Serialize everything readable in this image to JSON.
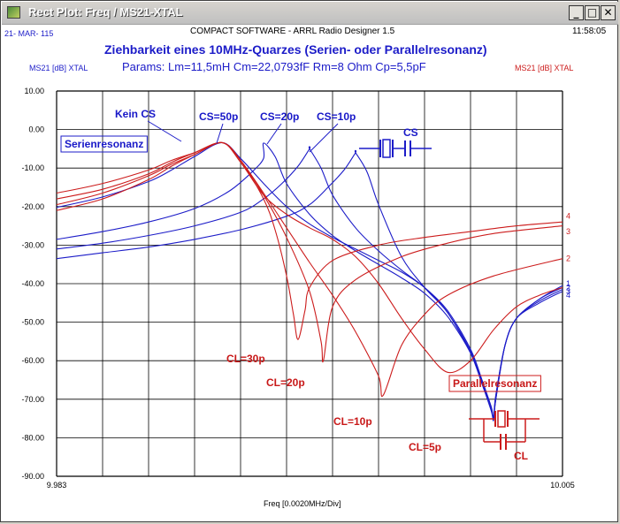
{
  "window": {
    "title": "Rect Plot: Freq / MS21-XTAL",
    "minimize": "_",
    "maximize": "□",
    "close": "✕"
  },
  "header": {
    "date": "21- MAR- 115",
    "software": "COMPACT SOFTWARE - ARRL Radio Designer 1.5",
    "time": "11:58:05"
  },
  "chart_data": {
    "type": "line",
    "title": "Ziehbarkeit eines 10MHz-Quarzes (Serien- oder Parallelresonanz)",
    "subtitle": "Params:  Lm=11,5mH  Cm=22,0793fF   Rm=8 Ohm   Cp=5,5pF",
    "ylabel_left": "MS21 [dB] XTAL",
    "ylabel_right": "MS21 [dB] XTAL",
    "xlabel": "Freq [0.0020MHz/Div]",
    "xlim": [
      9.983,
      10.005
    ],
    "ylim": [
      -90,
      10
    ],
    "x_tick_labels": [
      "9.983",
      "10.005"
    ],
    "y_ticks": [
      "10.00",
      "0.00",
      "-10.00",
      "-20.00",
      "-30.00",
      "-40.00",
      "-50.00",
      "-60.00",
      "-70.00",
      "-80.00",
      "-90.00"
    ],
    "grid": true,
    "colors": {
      "blue": "#1c1cc8",
      "red": "#cc1c1c"
    },
    "series": [
      {
        "color": "blue",
        "x": [
          9.983,
          9.985,
          9.987,
          9.988,
          9.989,
          9.9902,
          9.991,
          9.992,
          9.993,
          9.994,
          9.995,
          9.996,
          9.997,
          9.998,
          9.999,
          10.0,
          10.001,
          10.0015,
          10.0019,
          10.002,
          10.0021,
          10.0025,
          10.003,
          10.004,
          10.005
        ],
        "y": [
          -20.2,
          -17.5,
          -13.5,
          -10.5,
          -7,
          -3.4,
          -7.5,
          -14,
          -20,
          -24.5,
          -28,
          -31,
          -34,
          -37,
          -41,
          -47,
          -57,
          -65,
          -72,
          -75,
          -70,
          -56,
          -49,
          -44,
          -40.5
        ]
      },
      {
        "color": "blue",
        "x": [
          9.983,
          9.985,
          9.987,
          9.989,
          9.9905,
          9.9915,
          9.992,
          9.992,
          9.9925,
          9.993,
          9.994,
          9.995,
          9.996,
          9.997,
          9.998,
          9.999,
          10.0,
          10.001,
          10.0015,
          10.0019,
          10.002,
          10.0021,
          10.0025,
          10.003,
          10.004,
          10.005
        ],
        "y": [
          -28.5,
          -26.5,
          -24,
          -20.5,
          -16,
          -11,
          -7.5,
          -3.5,
          -7,
          -14,
          -22,
          -27.5,
          -31.5,
          -35,
          -38.5,
          -42.5,
          -48.5,
          -58,
          -66,
          -73,
          -75.5,
          -70,
          -56,
          -49,
          -44,
          -41
        ]
      },
      {
        "color": "blue",
        "x": [
          9.983,
          9.985,
          9.987,
          9.989,
          9.991,
          9.992,
          9.9928,
          9.9935,
          9.994,
          9.994,
          9.9945,
          9.995,
          9.996,
          9.997,
          9.998,
          9.999,
          10.0,
          10.001,
          10.0015,
          10.0019,
          10.002,
          10.0021,
          10.0025,
          10.003,
          10.004,
          10.005
        ],
        "y": [
          -31,
          -29.5,
          -27.5,
          -25,
          -21.5,
          -18,
          -14,
          -9.5,
          -5,
          -5,
          -10,
          -17,
          -25.5,
          -31.5,
          -36.5,
          -41,
          -47.5,
          -58,
          -66,
          -72.5,
          -75,
          -69,
          -56,
          -49,
          -44.5,
          -41.5
        ]
      },
      {
        "color": "blue",
        "x": [
          9.983,
          9.985,
          9.987,
          9.989,
          9.991,
          9.993,
          9.994,
          9.9948,
          9.9955,
          9.996,
          9.996,
          9.9965,
          9.997,
          9.998,
          9.999,
          10.0,
          10.001,
          10.0015,
          10.0019,
          10.002,
          10.0021,
          10.0025,
          10.003,
          10.004,
          10.005
        ],
        "y": [
          -33.5,
          -32,
          -30.5,
          -28.5,
          -26,
          -22.5,
          -19.5,
          -15,
          -10.5,
          -6,
          -6,
          -11,
          -19.5,
          -33,
          -41,
          -47.5,
          -57.5,
          -65.5,
          -72,
          -75,
          -69,
          -56,
          -49,
          -45,
          -42
        ]
      },
      {
        "color": "red",
        "x": [
          9.983,
          9.985,
          9.987,
          9.988,
          9.989,
          9.9902,
          9.991,
          9.992,
          9.9925,
          9.993,
          9.9933,
          9.9935,
          9.9938,
          9.994,
          9.995,
          9.997,
          9.999,
          10.001,
          10.003,
          10.005
        ],
        "y": [
          -16.5,
          -14,
          -10.5,
          -8,
          -6,
          -3.4,
          -8,
          -18,
          -26,
          -38,
          -48,
          -54.5,
          -47,
          -41,
          -34,
          -30,
          -28,
          -26.5,
          -25,
          -24
        ]
      },
      {
        "color": "red",
        "x": [
          9.983,
          9.985,
          9.987,
          9.988,
          9.989,
          9.9902,
          9.991,
          9.992,
          9.993,
          9.994,
          9.9945,
          9.9946,
          9.995,
          9.996,
          9.998,
          10.0,
          10.002,
          10.005
        ],
        "y": [
          -18,
          -15.5,
          -11.5,
          -8.5,
          -6,
          -3.4,
          -8,
          -17,
          -28,
          -42,
          -55,
          -60,
          -46,
          -39,
          -33,
          -29.5,
          -27,
          -25
        ]
      },
      {
        "color": "red",
        "x": [
          9.983,
          9.985,
          9.987,
          9.988,
          9.989,
          9.9902,
          9.991,
          9.992,
          9.993,
          9.994,
          9.995,
          9.996,
          9.997,
          9.9972,
          9.998,
          9.999,
          10.0,
          10.002,
          10.005
        ],
        "y": [
          -19.5,
          -16.5,
          -12,
          -9,
          -6.5,
          -3.4,
          -8,
          -16.5,
          -25.5,
          -34.5,
          -43,
          -52.5,
          -64,
          -69,
          -56,
          -48,
          -43,
          -38,
          -33.5
        ]
      },
      {
        "color": "red",
        "x": [
          9.983,
          9.985,
          9.987,
          9.988,
          9.989,
          9.9902,
          9.991,
          9.992,
          9.993,
          9.994,
          9.995,
          9.996,
          9.997,
          9.998,
          9.999,
          10.0,
          10.001,
          10.002,
          10.003,
          10.004,
          10.005
        ],
        "y": [
          -21,
          -18,
          -13,
          -9.5,
          -6.5,
          -3.4,
          -8.5,
          -17,
          -22,
          -25.5,
          -28.5,
          -33,
          -40,
          -49,
          -57,
          -63,
          -60,
          -52,
          -46,
          -43,
          -41
        ]
      }
    ],
    "right_end_labels": [
      {
        "text": "4",
        "color": "red",
        "y": -22.5
      },
      {
        "text": "3",
        "color": "red",
        "y": -26.5
      },
      {
        "text": "2",
        "color": "red",
        "y": -33.5
      },
      {
        "text": "1",
        "color": "blue",
        "y": -40
      },
      {
        "text": "2",
        "color": "blue",
        "y": -41
      },
      {
        "text": "3",
        "color": "blue",
        "y": -42
      },
      {
        "text": "4",
        "color": "blue",
        "y": -43
      }
    ],
    "annotations": [
      {
        "text": "Kein CS",
        "color": "blue"
      },
      {
        "text": "CS=50p",
        "color": "blue"
      },
      {
        "text": "CS=20p",
        "color": "blue"
      },
      {
        "text": "CS=10p",
        "color": "blue"
      },
      {
        "text": "CS",
        "color": "blue"
      },
      {
        "text": "Serienresonanz",
        "color": "blue",
        "boxed": true
      },
      {
        "text": "CL=30p",
        "color": "red"
      },
      {
        "text": "CL=20p",
        "color": "red"
      },
      {
        "text": "CL=10p",
        "color": "red"
      },
      {
        "text": "CL=5p",
        "color": "red"
      },
      {
        "text": "CL",
        "color": "red"
      },
      {
        "text": "Parallelresonanz",
        "color": "red",
        "boxed": true
      }
    ]
  }
}
